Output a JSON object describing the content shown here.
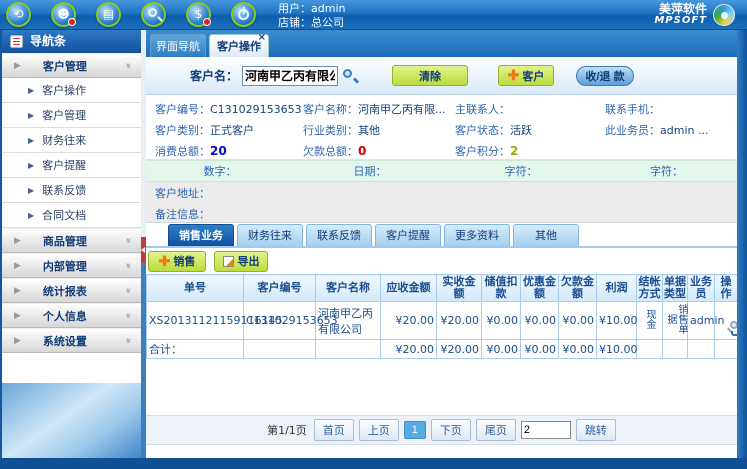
{
  "toolbar": {
    "icons": [
      "globe-refresh-icon",
      "member-icon",
      "schedule-icon",
      "search-icon",
      "money-icon",
      "power-icon"
    ],
    "user_label": "用户：",
    "user_value": "admin",
    "store_label": "店铺：",
    "store_value": "总公司",
    "logo_cn": "美萍软件",
    "logo_en": "MPSOFT"
  },
  "sidebar": {
    "title": "导航条",
    "groups": [
      {
        "label": "客户管理",
        "expanded": true,
        "items": [
          "客户操作",
          "客户管理",
          "财务往来",
          "客户提醒",
          "联系反馈",
          "合同文档"
        ]
      },
      {
        "label": "商品管理",
        "expanded": false
      },
      {
        "label": "内部管理",
        "expanded": false
      },
      {
        "label": "统计报表",
        "expanded": false
      },
      {
        "label": "个人信息",
        "expanded": false
      },
      {
        "label": "系统设置",
        "expanded": false
      }
    ]
  },
  "tabs": [
    {
      "label": "界面导航",
      "active": false
    },
    {
      "label": "客户操作",
      "active": true,
      "close": "×"
    }
  ],
  "search": {
    "label": "客户名：",
    "value": "河南甲乙丙有限公司",
    "clear_button": "清除",
    "customer_button": "客户",
    "pay_button": "收/退 款"
  },
  "details": {
    "row1": [
      {
        "label": "客户编号：",
        "value": "C131029153653"
      },
      {
        "label": "客户名称：",
        "value": "河南甲乙丙有限..."
      },
      {
        "label": "主联系人：",
        "value": ""
      },
      {
        "label": "联系手机：",
        "value": ""
      }
    ],
    "row2": [
      {
        "label": "客户类别：",
        "value": "正式客户"
      },
      {
        "label": "行业类别：",
        "value": "其他"
      },
      {
        "label": "客户状态：",
        "value": "活跃"
      },
      {
        "label": "此业务员：",
        "value": "admin ..."
      }
    ],
    "row3": [
      {
        "label": "消费总额：",
        "value": "20"
      },
      {
        "label": "欠款总额：",
        "value": "0"
      },
      {
        "label": "客户积分：",
        "value": "2"
      }
    ],
    "custom_fields": [
      "数字：",
      "日期：",
      "字符：",
      "字符："
    ],
    "address_label": "客户地址：",
    "remark_label": "备注信息："
  },
  "subtabs": [
    "销售业务",
    "财务往来",
    "联系反馈",
    "客户提醒",
    "更多资料",
    "其他"
  ],
  "actions": {
    "add_sale": "销售",
    "export": "导出"
  },
  "table": {
    "headers": [
      "单号",
      "客户编号",
      "客户名称",
      "应收金额",
      "实收金额",
      "储值扣款",
      "优惠金额",
      "欠款金额",
      "利润",
      "结帐方式",
      "单据类型",
      "业务员",
      "操作"
    ],
    "rows": [
      {
        "order_no": "XS20131121159116145",
        "customer_no": "C131029153653",
        "customer_name": "河南甲乙丙有限公司",
        "receivable": "¥20.00",
        "received": "¥20.00",
        "stored_deduct": "¥0.00",
        "discount": "¥0.00",
        "debt": "¥0.00",
        "profit": "¥10.00",
        "pay_method": "现金",
        "doc_type": "销售单据",
        "salesman": "admin"
      }
    ],
    "total": {
      "label": "合计：",
      "receivable": "¥20.00",
      "received": "¥20.00",
      "stored_deduct": "¥0.00",
      "discount": "¥0.00",
      "debt": "¥0.00",
      "profit": "¥10.00"
    }
  },
  "pagination": {
    "page_info": "第1/1页",
    "first": "首页",
    "prev": "上页",
    "current": "1",
    "next": "下页",
    "last": "尾页",
    "jump_value": "2",
    "jump_button": "跳转"
  },
  "colors": {
    "toolbar_blue": "#1f74c2",
    "button_green": "#bcdc3c",
    "active_tab_blue": "#11529e",
    "total_value_blue": "#0008cc",
    "debt_value_red": "#cc0000",
    "points_olive": "#a8a400",
    "money_green": "#009a00",
    "money_olive": "#b0a400",
    "money_red": "#dd0000"
  }
}
